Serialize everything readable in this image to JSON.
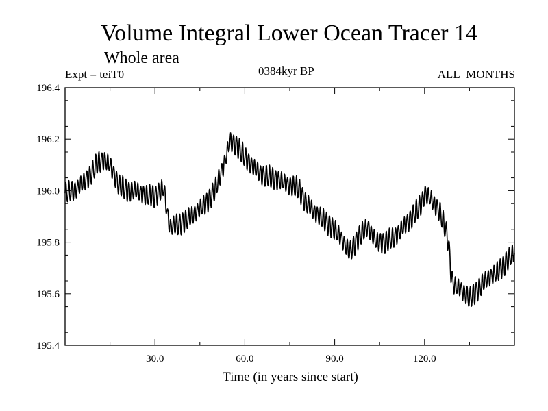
{
  "chart_data": {
    "type": "line",
    "title": "Volume Integral Lower Ocean Tracer 14",
    "subtitle": "Whole area",
    "expt_label": "Expt = teiT0",
    "period_label": "0384kyr BP",
    "months_label": "ALL_MONTHS",
    "xlabel": "Time (in years since start)",
    "ylabel": "",
    "xlim": [
      0,
      150
    ],
    "ylim": [
      195.4,
      196.4
    ],
    "x_ticks": [
      30,
      60,
      90,
      120
    ],
    "x_tick_labels": [
      "30.0",
      "60.0",
      "90.0",
      "120.0"
    ],
    "y_ticks": [
      195.4,
      195.6,
      195.8,
      196.0,
      196.2,
      196.4
    ],
    "y_tick_labels": [
      "195.4",
      "195.6",
      "195.8",
      "196.0",
      "196.2",
      "196.4"
    ],
    "grid": false,
    "seasonal_amplitude": 0.035,
    "series": [
      {
        "name": "Tracer 14",
        "color": "#000000",
        "x": [
          0,
          3,
          6,
          9,
          11,
          13,
          15,
          18,
          21,
          24,
          27,
          30,
          32,
          33,
          34,
          35,
          38,
          41,
          44,
          47,
          50,
          53,
          55,
          57,
          60,
          63,
          66,
          69,
          72,
          75,
          78,
          80,
          83,
          86,
          89,
          92,
          95,
          98,
          101,
          104,
          107,
          110,
          113,
          116,
          119,
          120,
          122,
          125,
          127,
          128,
          129,
          130,
          132,
          135,
          138,
          141,
          144,
          147,
          150
        ],
        "y": [
          195.99,
          196.0,
          196.03,
          196.07,
          196.11,
          196.12,
          196.1,
          196.02,
          196.0,
          196.0,
          195.98,
          195.98,
          196.0,
          196.01,
          195.92,
          195.86,
          195.87,
          195.89,
          195.92,
          195.95,
          196.0,
          196.1,
          196.19,
          196.18,
          196.13,
          196.09,
          196.06,
          196.05,
          196.04,
          196.02,
          196.01,
          195.96,
          195.92,
          195.89,
          195.86,
          195.82,
          195.76,
          195.82,
          195.86,
          195.8,
          195.8,
          195.82,
          195.86,
          195.9,
          195.95,
          195.99,
          195.97,
          195.92,
          195.85,
          195.8,
          195.66,
          195.63,
          195.62,
          195.58,
          195.62,
          195.66,
          195.68,
          195.72,
          195.76
        ]
      }
    ]
  }
}
